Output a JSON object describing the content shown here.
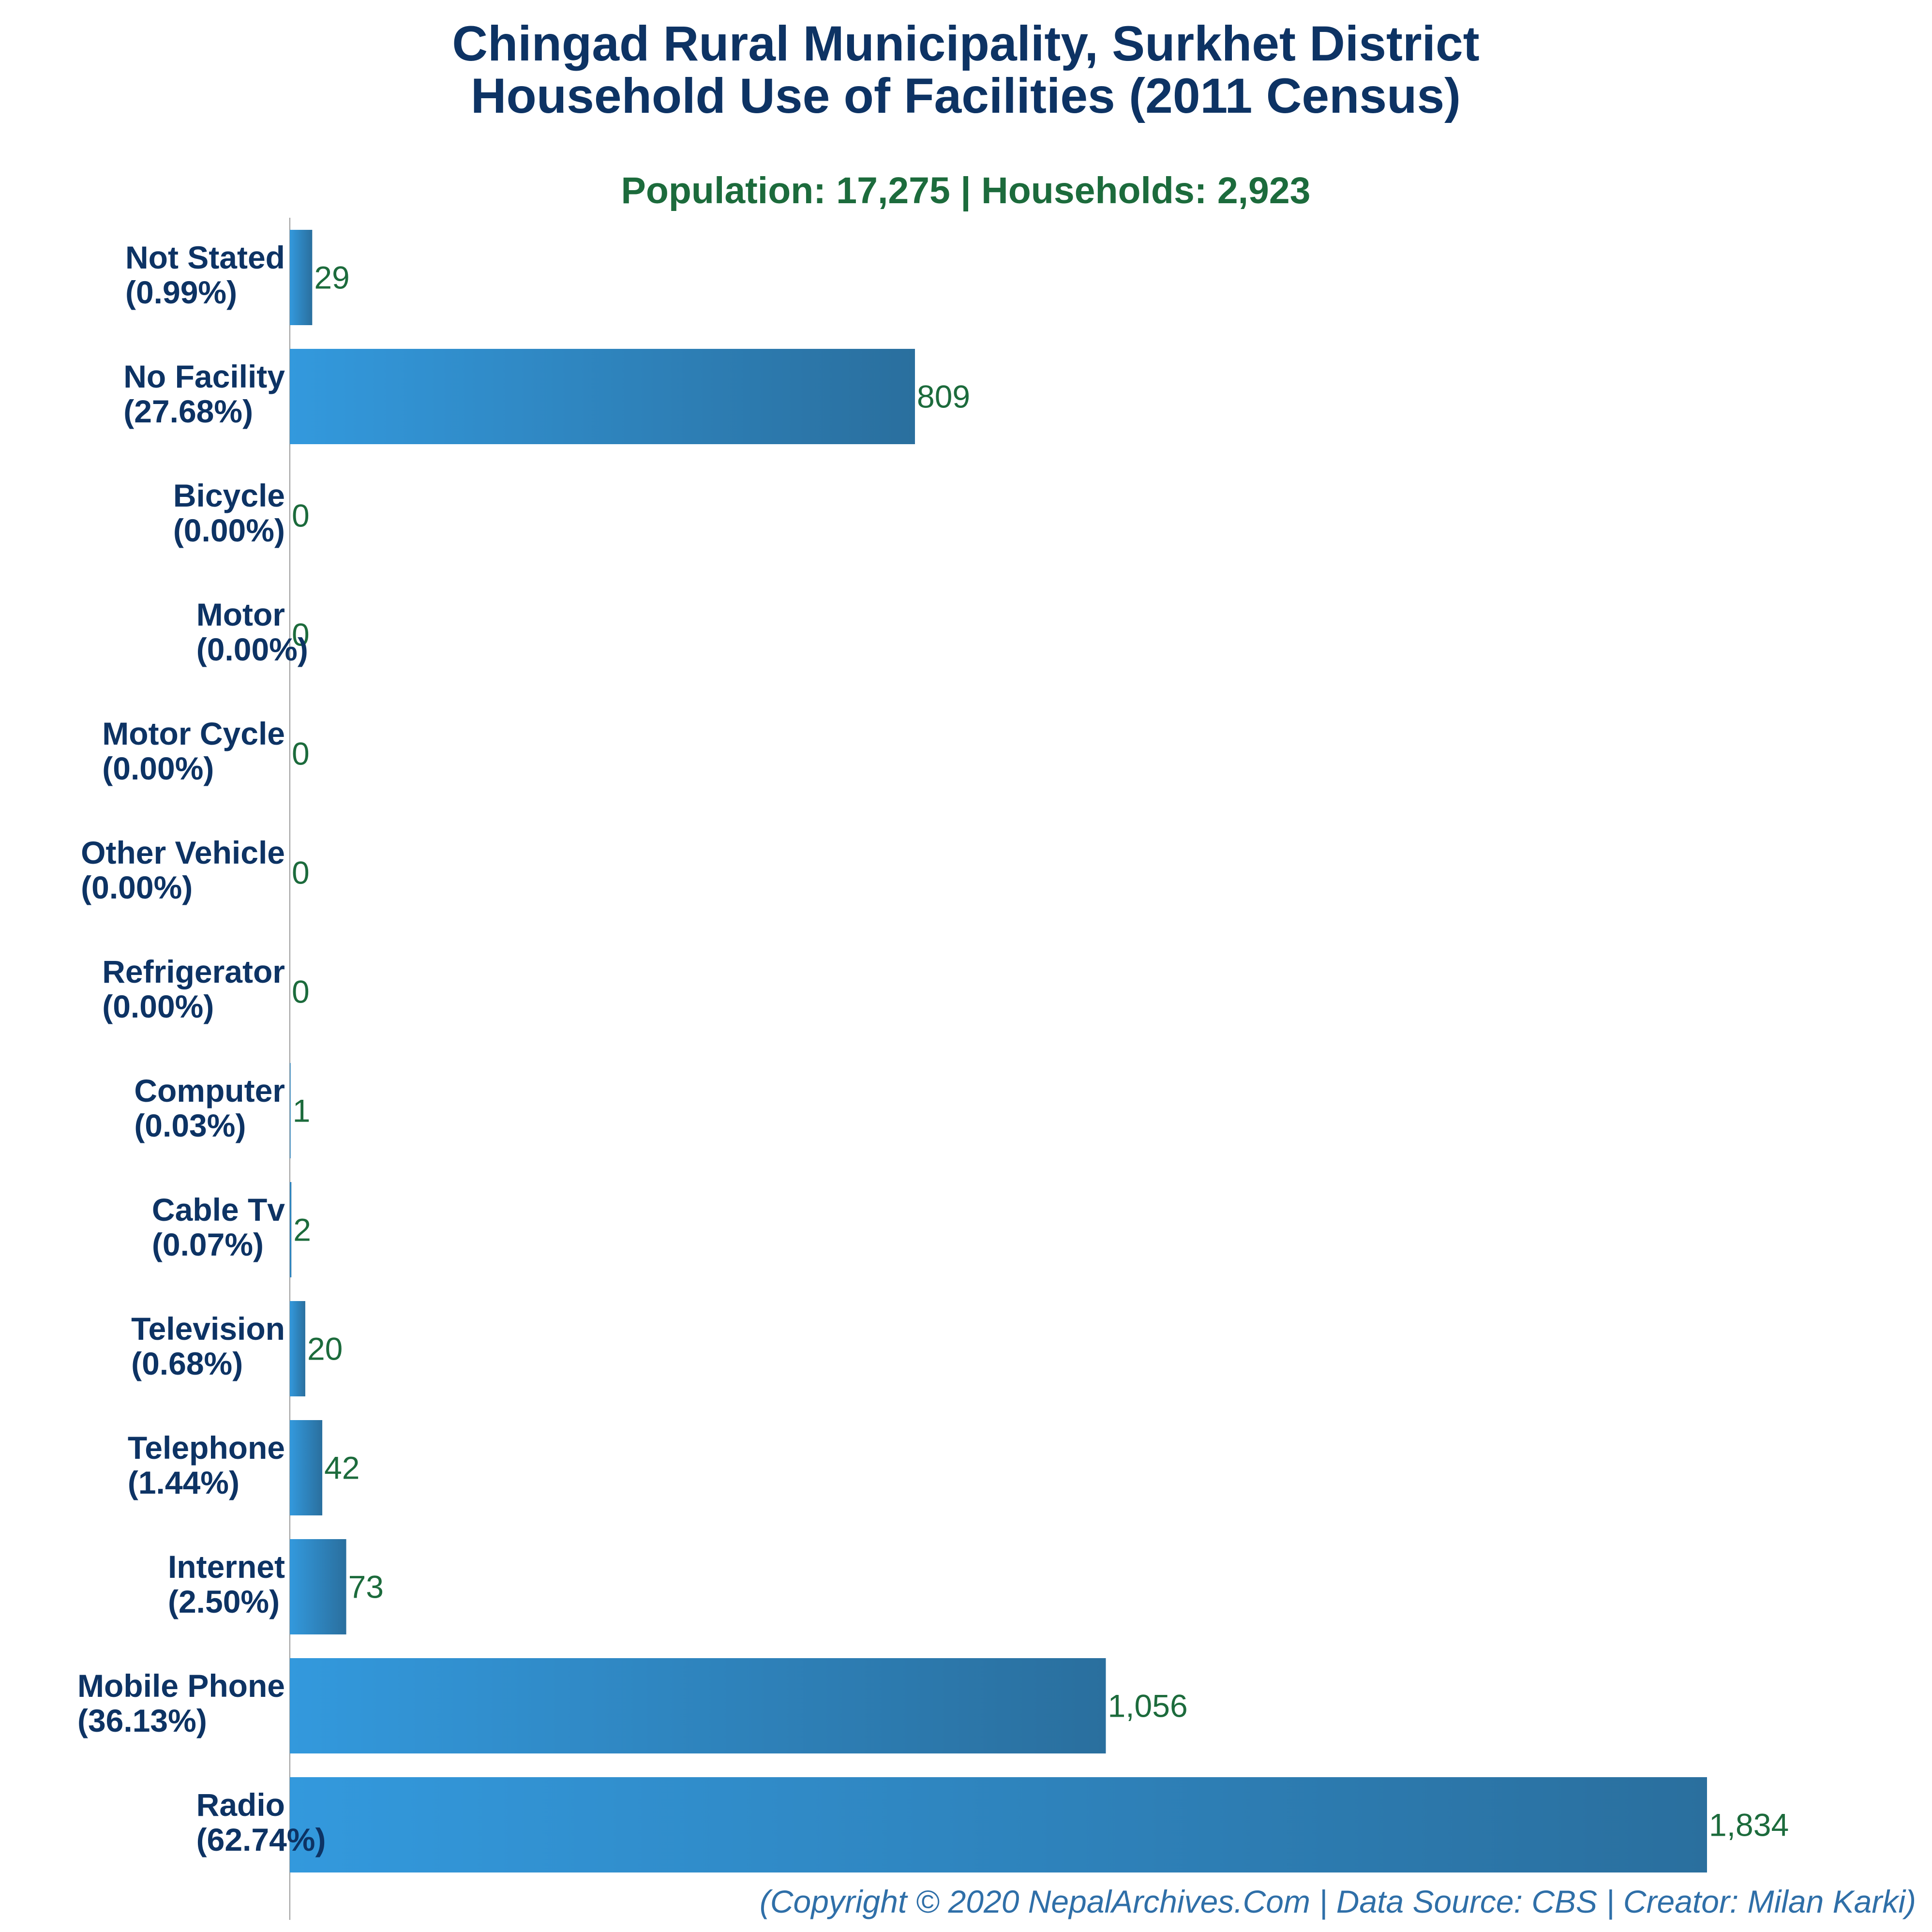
{
  "colors": {
    "title": "#0d3364",
    "subtitle": "#1c6b3c",
    "category_label": "#0d3364",
    "value_label": "#1c6b3c",
    "footer": "#2f6fa8",
    "bar_gradient_start": "#3399dd",
    "bar_gradient_end": "#2a6f9e",
    "axis": "#9a9a9a"
  },
  "chart_data": {
    "type": "bar",
    "orientation": "horizontal",
    "title": "Chingad Rural Municipality, Surkhet District",
    "title_line2": "Household Use of Facilities (2011 Census)",
    "subtitle": "Population: 17,275 | Households: 2,923",
    "xlabel": "",
    "ylabel": "",
    "xlim": [
      0,
      1834
    ],
    "grid": false,
    "legend": "none",
    "categories": [
      "Not Stated",
      "No Facility",
      "Bicycle",
      "Motor",
      "Motor Cycle",
      "Other Vehicle",
      "Refrigerator",
      "Computer",
      "Cable Tv",
      "Television",
      "Telephone",
      "Internet",
      "Mobile Phone",
      "Radio"
    ],
    "percent_labels": [
      "(0.99%)",
      "(27.68%)",
      "(0.00%)",
      "(0.00%)",
      "(0.00%)",
      "(0.00%)",
      "(0.00%)",
      "(0.03%)",
      "(0.07%)",
      "(0.68%)",
      "(1.44%)",
      "(2.50%)",
      "(36.13%)",
      "(62.74%)"
    ],
    "values": [
      29,
      809,
      0,
      0,
      0,
      0,
      0,
      1,
      2,
      20,
      42,
      73,
      1056,
      1834
    ],
    "value_labels": [
      "29",
      "809",
      "0",
      "0",
      "0",
      "0",
      "0",
      "1",
      "2",
      "20",
      "42",
      "73",
      "1,056",
      "1,834"
    ]
  },
  "footer": "(Copyright © 2020 NepalArchives.Com | Data Source: CBS | Creator: Milan Karki)"
}
